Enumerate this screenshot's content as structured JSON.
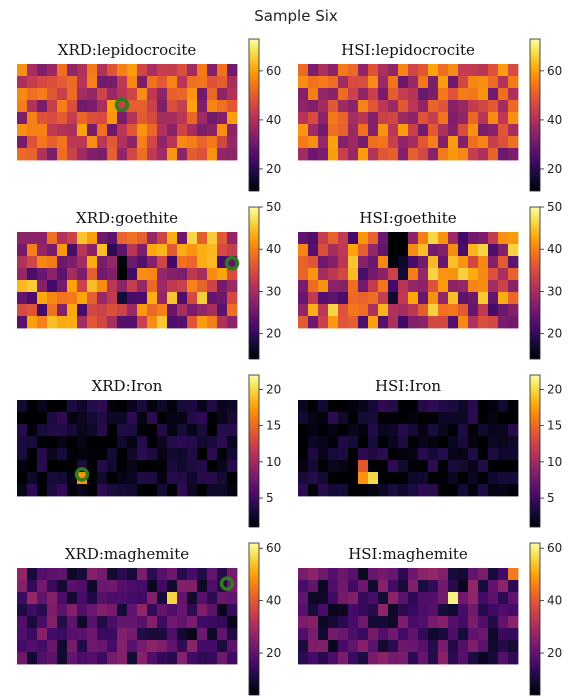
{
  "figure": {
    "suptitle": "Sample Six"
  },
  "colors": {
    "colormap": "inferno",
    "marker": "#2e7d1a",
    "background": "#ffffff"
  },
  "chart_data": [
    {
      "type": "heatmap",
      "title": "XRD:lepidocrocite",
      "grid": [
        8,
        22
      ],
      "colorbar": {
        "min": 11,
        "max": 73,
        "ticks": [
          20,
          40,
          60
        ]
      },
      "marker": {
        "col": 10.5,
        "row": 3.4
      },
      "seed": 11,
      "hotspots": []
    },
    {
      "type": "heatmap",
      "title": "HSI:lepidocrocite",
      "grid": [
        8,
        22
      ],
      "colorbar": {
        "min": 11,
        "max": 73,
        "ticks": [
          20,
          40,
          60
        ]
      },
      "marker": null,
      "seed": 12,
      "hotspots": []
    },
    {
      "type": "heatmap",
      "title": "XRD:goethite",
      "grid": [
        8,
        22
      ],
      "colorbar": {
        "min": 14,
        "max": 50,
        "ticks": [
          20,
          30,
          40,
          50
        ]
      },
      "marker": {
        "col": 21.5,
        "row": 2.6
      },
      "seed": 21,
      "hotspots": []
    },
    {
      "type": "heatmap",
      "title": "HSI:goethite",
      "grid": [
        8,
        22
      ],
      "colorbar": {
        "min": 14,
        "max": 50,
        "ticks": [
          20,
          30,
          40,
          50
        ]
      },
      "marker": null,
      "seed": 22,
      "hotspots": []
    },
    {
      "type": "heatmap",
      "title": "XRD:Iron",
      "grid": [
        8,
        22
      ],
      "colorbar": {
        "min": 1,
        "max": 22,
        "ticks": [
          5,
          10,
          15,
          20
        ]
      },
      "marker": {
        "col": 6.5,
        "row": 6.2
      },
      "seed": 31,
      "hotspots": [
        {
          "col": 6,
          "row": 6,
          "v": 17
        }
      ]
    },
    {
      "type": "heatmap",
      "title": "HSI:Iron",
      "grid": [
        8,
        22
      ],
      "colorbar": {
        "min": 1,
        "max": 22,
        "ticks": [
          5,
          10,
          15,
          20
        ]
      },
      "marker": null,
      "seed": 32,
      "hotspots": [
        {
          "col": 6,
          "row": 6,
          "v": 17
        },
        {
          "col": 6,
          "row": 5,
          "v": 14
        },
        {
          "col": 7,
          "row": 6,
          "v": 20
        }
      ]
    },
    {
      "type": "heatmap",
      "title": "XRD:maghemite",
      "grid": [
        8,
        22
      ],
      "colorbar": {
        "min": 4,
        "max": 62,
        "ticks": [
          20,
          40,
          60
        ]
      },
      "marker": {
        "col": 21.0,
        "row": 1.3
      },
      "seed": 41,
      "hotspots": [
        {
          "col": 15,
          "row": 2,
          "v": 56
        }
      ]
    },
    {
      "type": "heatmap",
      "title": "HSI:maghemite",
      "grid": [
        8,
        22
      ],
      "colorbar": {
        "min": 4,
        "max": 62,
        "ticks": [
          20,
          40,
          60
        ]
      },
      "marker": null,
      "seed": 42,
      "hotspots": [
        {
          "col": 15,
          "row": 2,
          "v": 60
        },
        {
          "col": 21,
          "row": 0,
          "v": 45
        }
      ]
    }
  ]
}
